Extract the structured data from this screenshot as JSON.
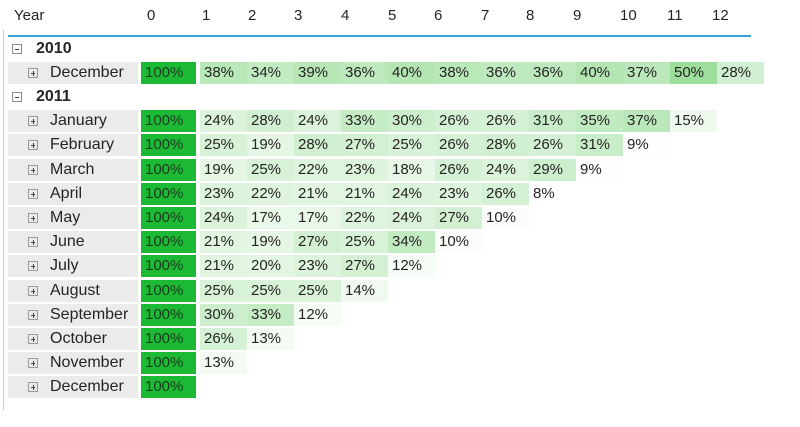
{
  "header": {
    "year_label": "Year",
    "columns": [
      "0",
      "1",
      "2",
      "3",
      "4",
      "5",
      "6",
      "7",
      "8",
      "9",
      "10",
      "11",
      "12"
    ]
  },
  "colors": {
    "max": "#1bb934",
    "accent_line": "#3aa0d8"
  },
  "groups": [
    {
      "year": "2010",
      "rows": [
        {
          "month": "December",
          "values": [
            "100%",
            "38%",
            "34%",
            "39%",
            "36%",
            "40%",
            "38%",
            "36%",
            "36%",
            "40%",
            "37%",
            "50%",
            "28%"
          ]
        }
      ]
    },
    {
      "year": "2011",
      "rows": [
        {
          "month": "January",
          "values": [
            "100%",
            "24%",
            "28%",
            "24%",
            "33%",
            "30%",
            "26%",
            "26%",
            "31%",
            "35%",
            "37%",
            "15%"
          ]
        },
        {
          "month": "February",
          "values": [
            "100%",
            "25%",
            "19%",
            "28%",
            "27%",
            "25%",
            "26%",
            "28%",
            "26%",
            "31%",
            "9%"
          ]
        },
        {
          "month": "March",
          "values": [
            "100%",
            "19%",
            "25%",
            "22%",
            "23%",
            "18%",
            "26%",
            "24%",
            "29%",
            "9%"
          ]
        },
        {
          "month": "April",
          "values": [
            "100%",
            "23%",
            "22%",
            "21%",
            "21%",
            "24%",
            "23%",
            "26%",
            "8%"
          ]
        },
        {
          "month": "May",
          "values": [
            "100%",
            "24%",
            "17%",
            "17%",
            "22%",
            "24%",
            "27%",
            "10%"
          ]
        },
        {
          "month": "June",
          "values": [
            "100%",
            "21%",
            "19%",
            "27%",
            "25%",
            "34%",
            "10%"
          ]
        },
        {
          "month": "July",
          "values": [
            "100%",
            "21%",
            "20%",
            "23%",
            "27%",
            "12%"
          ]
        },
        {
          "month": "August",
          "values": [
            "100%",
            "25%",
            "25%",
            "25%",
            "14%"
          ]
        },
        {
          "month": "September",
          "values": [
            "100%",
            "30%",
            "33%",
            "12%"
          ]
        },
        {
          "month": "October",
          "values": [
            "100%",
            "26%",
            "13%"
          ]
        },
        {
          "month": "November",
          "values": [
            "100%",
            "13%"
          ]
        },
        {
          "month": "December",
          "values": [
            "100%"
          ]
        }
      ]
    }
  ]
}
